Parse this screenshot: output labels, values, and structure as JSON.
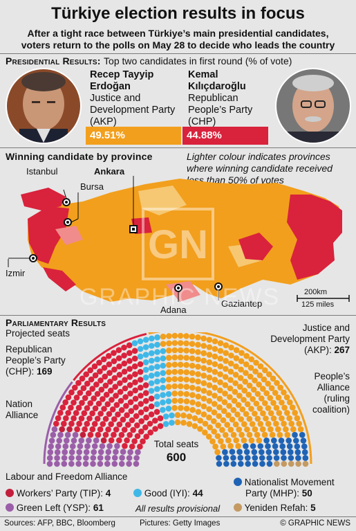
{
  "header": {
    "title": "Türkiye election results in focus",
    "subtitle_line1": "After a tight race between Türkiye’s main presidential candidates,",
    "subtitle_line2": "voters return to the polls on May 28 to decide who leads the country"
  },
  "presidential": {
    "heading": "Presidential Results:",
    "note": "Top two candidates in first round (% of vote)",
    "candidates": [
      {
        "name_line1": "Recep Tayyip",
        "name_line2": "Erdoğan",
        "party_lines": [
          "Justice and",
          "Development Party",
          "(AKP)"
        ],
        "percent_label": "49.51%",
        "percent": 49.51,
        "color": "#f29f1d"
      },
      {
        "name_line1": "Kemal",
        "name_line2": "Kılıçdaroğlu",
        "party_lines": [
          "Republican",
          "People’s Party",
          "(CHP)"
        ],
        "percent_label": "44.88%",
        "percent": 44.88,
        "color": "#d9223c"
      }
    ]
  },
  "map": {
    "heading": "Winning candidate by province",
    "note_lines": [
      "Lighter colour indicates provinces",
      "where winning candidate received",
      "less than 50% of votes"
    ],
    "cities": {
      "istanbul": "Istanbul",
      "bursa": "Bursa",
      "ankara": "Ankara",
      "izmir": "Izmir",
      "adana": "Adana",
      "gaziantep": "Gaziantep"
    },
    "scale_km": "200km",
    "scale_miles": "125 miles",
    "colors": {
      "akp": "#f29f1d",
      "akp_light": "#f6c873",
      "chp": "#d9223c",
      "chp_light": "#f08c8c"
    }
  },
  "parliament": {
    "heading": "Parliamentary Results",
    "subheading": "Projected seats",
    "total_label": "Total seats",
    "total": "600",
    "chp_label_lines": [
      "Republican",
      "People’s Party"
    ],
    "chp_label_last": "(CHP):",
    "chp_seats": "169",
    "akp_label_lines": [
      "Justice and",
      "Development Party"
    ],
    "akp_label_last": "(AKP):",
    "akp_seats": "267",
    "nation_alliance_lines": [
      "Nation",
      "Alliance"
    ],
    "peoples_alliance_lines": [
      "People’s",
      "Alliance",
      "(ruling",
      "coalition)"
    ],
    "labour_alliance": "Labour and Freedom Alliance",
    "provisional": "All results provisional",
    "seats": {
      "ysp": 61,
      "tip": 4,
      "chp": 169,
      "iyi": 44,
      "akp": 267,
      "mhp": 50,
      "yeniden": 5
    },
    "colors": {
      "ysp": "#9b5ea8",
      "tip": "#c31f3c",
      "chp": "#d9223c",
      "iyi": "#3fb8e8",
      "akp": "#f29f1d",
      "mhp": "#1f63b5",
      "yeniden": "#c49a62"
    },
    "legend": [
      {
        "key": "tip",
        "label": "Workers’ Party (TIP):",
        "value": "4"
      },
      {
        "key": "iyi",
        "label": "Good (IYI):",
        "value": "44"
      },
      {
        "key": "ysp",
        "label": "Green Left (YSP):",
        "value": "61"
      },
      {
        "key": "mhp",
        "label_line1": "Nationalist Movement",
        "label": "Party (MHP):",
        "value": "50"
      },
      {
        "key": "yeniden",
        "label": "Yeniden Refah:",
        "value": "5"
      }
    ]
  },
  "footer": {
    "sources": "Sources: AFP, BBC, Bloomberg",
    "pictures": "Pictures: Getty Images",
    "credit": "© GRAPHIC NEWS"
  },
  "watermark": {
    "logo": "GN",
    "text": "GRAPHIC NEWS"
  }
}
